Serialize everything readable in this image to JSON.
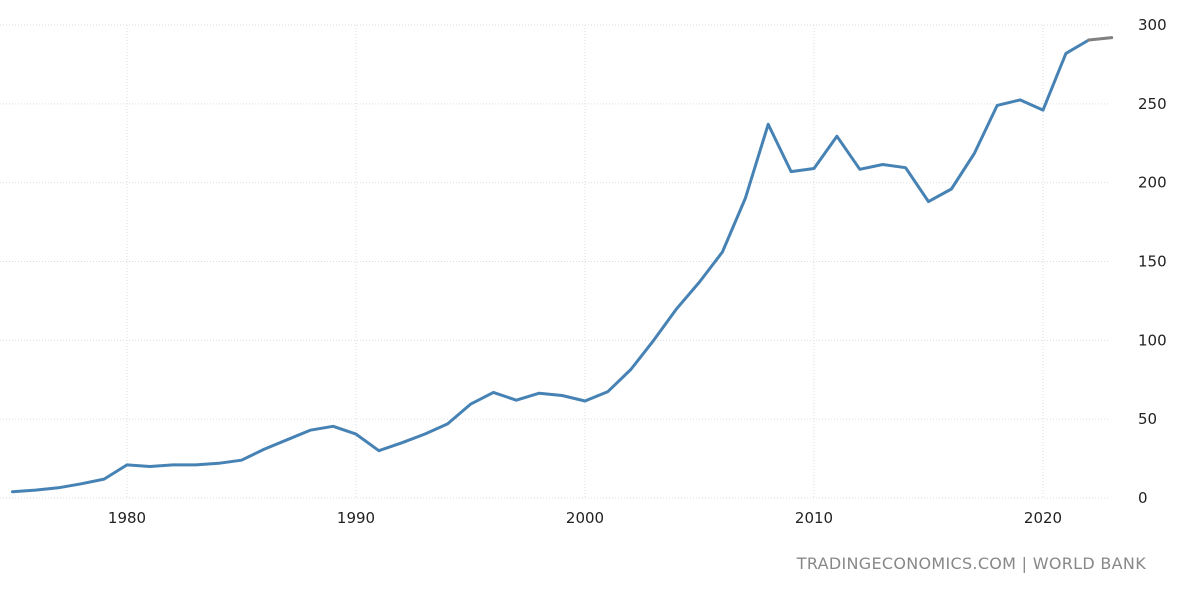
{
  "source_credit": "TRADINGECONOMICS.COM | WORLD BANK",
  "colors": {
    "main_line": "#4682b4",
    "forecast_line": "#808080",
    "grid": "#dddddd"
  },
  "chart_data": {
    "type": "line",
    "title": "",
    "xlabel": "",
    "ylabel": "",
    "xlim": [
      1975,
      2023
    ],
    "ylim": [
      0,
      300
    ],
    "x_ticks": [
      1980,
      1990,
      2000,
      2010,
      2020
    ],
    "y_ticks": [
      0,
      50,
      100,
      150,
      200,
      250,
      300
    ],
    "grid": true,
    "y_axis_position": "right",
    "series": [
      {
        "x": [
          1975,
          1976,
          1977,
          1978,
          1979,
          1980,
          1981,
          1982,
          1983,
          1984,
          1985,
          1986,
          1987,
          1988,
          1989,
          1990,
          1991,
          1992,
          1993,
          1994,
          1995,
          1996,
          1997,
          1998,
          1999,
          2000,
          2001,
          2002,
          2003,
          2004,
          2005,
          2006,
          2007,
          2008,
          2009,
          2010,
          2011,
          2012,
          2013,
          2014,
          2015,
          2016,
          2017,
          2018,
          2019,
          2020,
          2021,
          2022
        ],
        "values": [
          4,
          5,
          6.5,
          9,
          12,
          21,
          20,
          21,
          21,
          22,
          24,
          31,
          37,
          43,
          45.5,
          40.5,
          30,
          35,
          40.5,
          47,
          59.5,
          67,
          62,
          66.5,
          65,
          61.5,
          67.5,
          81.5,
          100,
          120,
          137,
          156,
          190,
          237,
          207,
          209,
          229.5,
          208.5,
          211.5,
          209.5,
          188,
          196,
          218.5,
          249,
          252.5,
          246,
          282,
          290.5
        ]
      },
      {
        "x": [
          2022,
          2023
        ],
        "values": [
          290.5,
          292
        ]
      }
    ]
  }
}
